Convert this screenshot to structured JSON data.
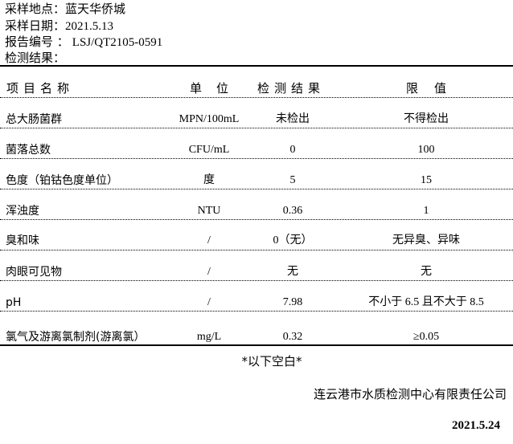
{
  "info": {
    "location_label": "采样地点：",
    "location": "蓝天华侨城",
    "date_label": "采样日期：",
    "date": "2021.5.13",
    "report_label": "报告编号 ：",
    "report_no": "LSJ/QT2105-0591",
    "result_label": "检测结果："
  },
  "table": {
    "headers": [
      "项目名称",
      "单位",
      "检测结果",
      "限值"
    ],
    "rows": [
      {
        "name": "总大肠菌群",
        "unit": "MPN/100mL",
        "result": "未检出",
        "limit": "不得检出"
      },
      {
        "name": "菌落总数",
        "unit": "CFU/mL",
        "result": "0",
        "limit": "100"
      },
      {
        "name": "色度（铂钴色度单位）",
        "unit": "度",
        "result": "5",
        "limit": "15"
      },
      {
        "name": "浑浊度",
        "unit": "NTU",
        "result": "0.36",
        "limit": "1"
      },
      {
        "name": "臭和味",
        "unit": "/",
        "result": "0（无）",
        "limit": "无异臭、异味"
      },
      {
        "name": "肉眼可见物",
        "unit": "/",
        "result": "无",
        "limit": "无"
      },
      {
        "name": "pH",
        "unit": "/",
        "result": "7.98",
        "limit": "不小于 6.5 且不大于 8.5"
      },
      {
        "name": "氯气及游离氯制剂(游离氯）",
        "unit": "mg/L",
        "result": "0.32",
        "limit": "≥0.05"
      }
    ]
  },
  "footer": {
    "blank_note": "*以下空白*",
    "company": "连云港市水质检测中心有限责任公司",
    "date": "2021.5.24"
  }
}
